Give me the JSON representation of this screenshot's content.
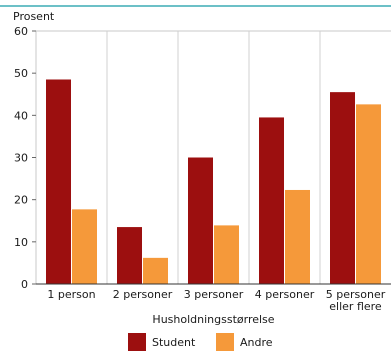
{
  "chart_data": {
    "type": "bar",
    "title": "",
    "ylabel": "Prosent",
    "xlabel": "Husholdningsstørrelse",
    "ylim": [
      0,
      60
    ],
    "yticks": [
      0,
      10,
      20,
      30,
      40,
      50,
      60
    ],
    "categories": [
      [
        "1 person"
      ],
      [
        "2 personer"
      ],
      [
        "3 personer"
      ],
      [
        "4 personer"
      ],
      [
        "5 personer",
        "eller flere"
      ]
    ],
    "series": [
      {
        "name": "Student",
        "color": "#9c0f0f",
        "values": [
          48.5,
          13.5,
          30,
          39.5,
          45.5
        ]
      },
      {
        "name": "Andre",
        "color": "#f5993a",
        "values": [
          17.7,
          6.2,
          13.9,
          22.3,
          42.6
        ]
      }
    ],
    "grid": "vertical category separators",
    "legend": "bottom-center",
    "frame_color": "#6cc0c7"
  }
}
